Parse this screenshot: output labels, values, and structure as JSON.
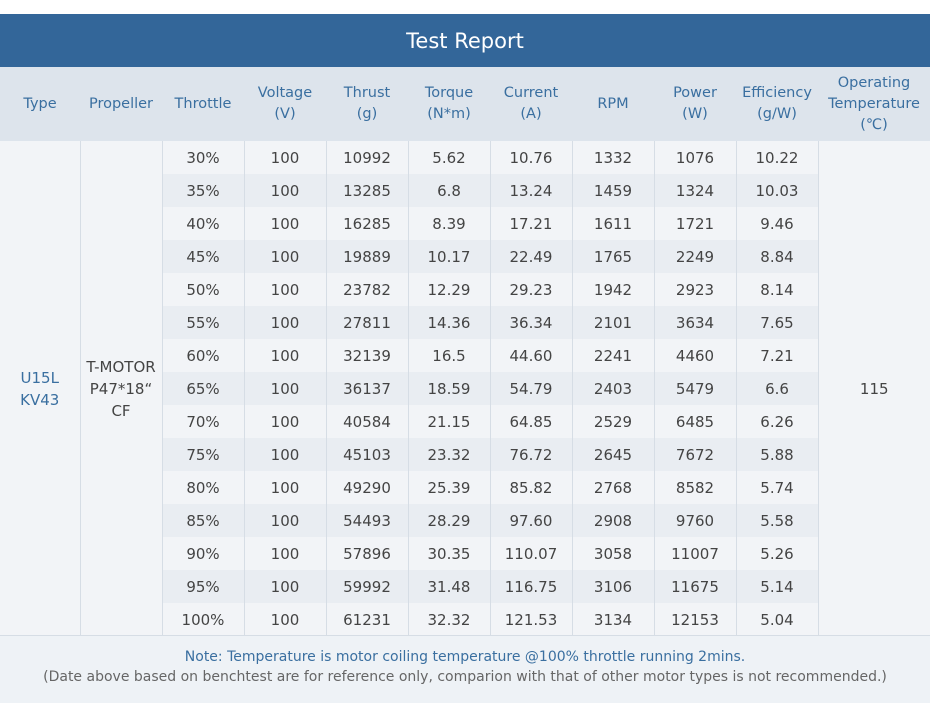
{
  "title": "Test Report",
  "headers": {
    "type": "Type",
    "propeller": "Propeller",
    "throttle": "Throttle",
    "voltage": [
      "Voltage",
      "(V)"
    ],
    "thrust": [
      "Thrust",
      "(g)"
    ],
    "torque": [
      "Torque",
      "(N*m)"
    ],
    "current": [
      "Current",
      "(A)"
    ],
    "rpm": "RPM",
    "power": [
      "Power",
      "(W)"
    ],
    "efficiency": [
      "Efficiency",
      "(g/W)"
    ],
    "temperature": [
      "Operating",
      "Temperature",
      "(℃)"
    ]
  },
  "type_value": [
    "U15L",
    "KV43"
  ],
  "propeller_value": [
    "T-MOTOR",
    "P47*18“",
    "CF"
  ],
  "temperature_value": "115",
  "rows": [
    [
      "30%",
      "100",
      "10992",
      "5.62",
      "10.76",
      "1332",
      "1076",
      "10.22"
    ],
    [
      "35%",
      "100",
      "13285",
      "6.8",
      "13.24",
      "1459",
      "1324",
      "10.03"
    ],
    [
      "40%",
      "100",
      "16285",
      "8.39",
      "17.21",
      "1611",
      "1721",
      "9.46"
    ],
    [
      "45%",
      "100",
      "19889",
      "10.17",
      "22.49",
      "1765",
      "2249",
      "8.84"
    ],
    [
      "50%",
      "100",
      "23782",
      "12.29",
      "29.23",
      "1942",
      "2923",
      "8.14"
    ],
    [
      "55%",
      "100",
      "27811",
      "14.36",
      "36.34",
      "2101",
      "3634",
      "7.65"
    ],
    [
      "60%",
      "100",
      "32139",
      "16.5",
      "44.60",
      "2241",
      "4460",
      "7.21"
    ],
    [
      "65%",
      "100",
      "36137",
      "18.59",
      "54.79",
      "2403",
      "5479",
      "6.6"
    ],
    [
      "70%",
      "100",
      "40584",
      "21.15",
      "64.85",
      "2529",
      "6485",
      "6.26"
    ],
    [
      "75%",
      "100",
      "45103",
      "23.32",
      "76.72",
      "2645",
      "7672",
      "5.88"
    ],
    [
      "80%",
      "100",
      "49290",
      "25.39",
      "85.82",
      "2768",
      "8582",
      "5.74"
    ],
    [
      "85%",
      "100",
      "54493",
      "28.29",
      "97.60",
      "2908",
      "9760",
      "5.58"
    ],
    [
      "90%",
      "100",
      "57896",
      "30.35",
      "110.07",
      "3058",
      "11007",
      "5.26"
    ],
    [
      "95%",
      "100",
      "59992",
      "31.48",
      "116.75",
      "3106",
      "11675",
      "5.14"
    ],
    [
      "100%",
      "100",
      "61231",
      "32.32",
      "121.53",
      "3134",
      "12153",
      "5.04"
    ]
  ],
  "footer": {
    "note": "Note: Temperature is motor coiling temperature @100% throttle running 2mins.",
    "disclaimer": "(Date above based on benchtest are for reference only, comparion with that of other motor types is not recommended.)"
  },
  "colors": {
    "title_bar": "#336699",
    "header_bg": "#dde4ec",
    "header_text": "#3a6fa0"
  }
}
